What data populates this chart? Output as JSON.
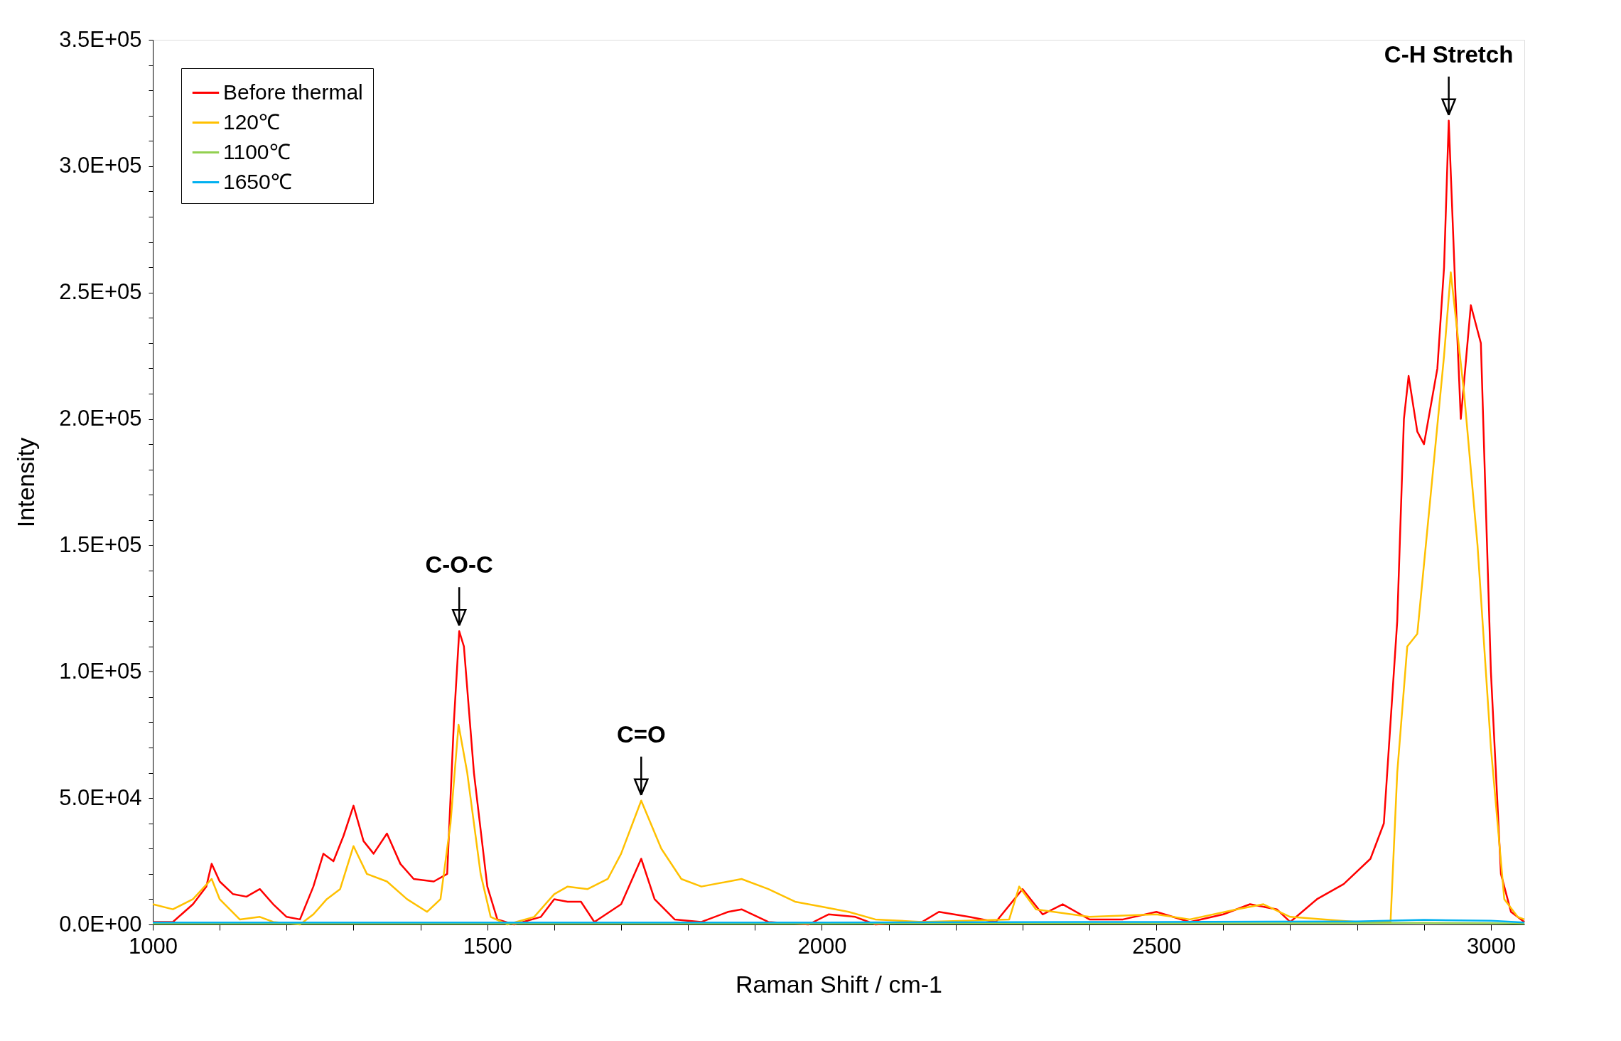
{
  "chart_data": {
    "type": "line",
    "xlabel": "Raman Shift / cm-1",
    "ylabel": "Intensity",
    "xlim": [
      1000,
      3050
    ],
    "ylim": [
      0,
      350000
    ],
    "xticks": [
      1000,
      {
        "value": 1100,
        "label": null
      },
      {
        "value": 1200,
        "label": null
      },
      {
        "value": 1300,
        "label": null
      },
      {
        "value": 1400,
        "label": null
      },
      1500,
      {
        "value": 1600,
        "label": null
      },
      {
        "value": 1700,
        "label": null
      },
      {
        "value": 1800,
        "label": null
      },
      {
        "value": 1900,
        "label": null
      },
      2000,
      {
        "value": 2100,
        "label": null
      },
      {
        "value": 2200,
        "label": null
      },
      {
        "value": 2300,
        "label": null
      },
      {
        "value": 2400,
        "label": null
      },
      2500,
      {
        "value": 2600,
        "label": null
      },
      {
        "value": 2700,
        "label": null
      },
      {
        "value": 2800,
        "label": null
      },
      {
        "value": 2900,
        "label": null
      },
      3000
    ],
    "yticks": [
      {
        "value": 0,
        "label": "0.0E+00"
      },
      {
        "value": 10000,
        "label": null
      },
      {
        "value": 20000,
        "label": null
      },
      {
        "value": 30000,
        "label": null
      },
      {
        "value": 40000,
        "label": null
      },
      {
        "value": 50000,
        "label": "5.0E+04"
      },
      {
        "value": 60000,
        "label": null
      },
      {
        "value": 70000,
        "label": null
      },
      {
        "value": 80000,
        "label": null
      },
      {
        "value": 90000,
        "label": null
      },
      {
        "value": 100000,
        "label": "1.0E+05"
      },
      {
        "value": 110000,
        "label": null
      },
      {
        "value": 120000,
        "label": null
      },
      {
        "value": 130000,
        "label": null
      },
      {
        "value": 140000,
        "label": null
      },
      {
        "value": 150000,
        "label": "1.5E+05"
      },
      {
        "value": 160000,
        "label": null
      },
      {
        "value": 170000,
        "label": null
      },
      {
        "value": 180000,
        "label": null
      },
      {
        "value": 190000,
        "label": null
      },
      {
        "value": 200000,
        "label": "2.0E+05"
      },
      {
        "value": 210000,
        "label": null
      },
      {
        "value": 220000,
        "label": null
      },
      {
        "value": 230000,
        "label": null
      },
      {
        "value": 240000,
        "label": null
      },
      {
        "value": 250000,
        "label": "2.5E+05"
      },
      {
        "value": 260000,
        "label": null
      },
      {
        "value": 270000,
        "label": null
      },
      {
        "value": 280000,
        "label": null
      },
      {
        "value": 290000,
        "label": null
      },
      {
        "value": 300000,
        "label": "3.0E+05"
      },
      {
        "value": 310000,
        "label": null
      },
      {
        "value": 320000,
        "label": null
      },
      {
        "value": 330000,
        "label": null
      },
      {
        "value": 340000,
        "label": null
      },
      {
        "value": 350000,
        "label": "3.5E+05"
      }
    ],
    "grid": false,
    "legend": "top left",
    "marker": "none",
    "line_style": "solid",
    "series": [
      {
        "name": "Before thermal",
        "color": "#ff0000",
        "x": [
          1000,
          1030,
          1060,
          1080,
          1088,
          1100,
          1120,
          1140,
          1160,
          1180,
          1200,
          1220,
          1240,
          1255,
          1270,
          1285,
          1300,
          1315,
          1330,
          1350,
          1370,
          1390,
          1420,
          1440,
          1450,
          1458,
          1465,
          1480,
          1500,
          1515,
          1540,
          1580,
          1600,
          1620,
          1640,
          1660,
          1700,
          1730,
          1750,
          1780,
          1820,
          1860,
          1880,
          1920,
          1980,
          2010,
          2050,
          2080,
          2150,
          2175,
          2220,
          2260,
          2300,
          2330,
          2360,
          2400,
          2450,
          2500,
          2550,
          2600,
          2640,
          2680,
          2700,
          2740,
          2780,
          2820,
          2840,
          2860,
          2870,
          2877,
          2890,
          2900,
          2920,
          2930,
          2937,
          2947,
          2955,
          2970,
          2985,
          3000,
          3015,
          3030,
          3050
        ],
        "values": [
          1000,
          1000,
          8000,
          15000,
          24000,
          17000,
          12000,
          11000,
          14000,
          8000,
          3000,
          2000,
          15000,
          28000,
          25000,
          35000,
          47000,
          33000,
          28000,
          36000,
          24000,
          18000,
          17000,
          20000,
          80000,
          116000,
          110000,
          60000,
          15000,
          2000,
          0,
          3000,
          10000,
          9000,
          9000,
          1000,
          8000,
          26000,
          10000,
          2000,
          1000,
          5000,
          6000,
          1000,
          0,
          4000,
          3000,
          0,
          1000,
          5000,
          3000,
          1000,
          14000,
          4000,
          8000,
          2000,
          2000,
          5000,
          1000,
          4000,
          8000,
          6000,
          1000,
          10000,
          16000,
          26000,
          40000,
          120000,
          200000,
          217000,
          195000,
          190000,
          220000,
          260000,
          318000,
          250000,
          200000,
          245000,
          230000,
          100000,
          20000,
          5000,
          1000
        ]
      },
      {
        "name": "120℃",
        "color": "#ffc000",
        "x": [
          1000,
          1030,
          1060,
          1088,
          1100,
          1130,
          1160,
          1180,
          1220,
          1240,
          1260,
          1280,
          1300,
          1320,
          1350,
          1380,
          1410,
          1430,
          1445,
          1457,
          1470,
          1490,
          1505,
          1530,
          1570,
          1600,
          1620,
          1650,
          1680,
          1700,
          1730,
          1760,
          1790,
          1820,
          1880,
          1920,
          1960,
          2000,
          2040,
          2080,
          2150,
          2280,
          2295,
          2320,
          2400,
          2500,
          2550,
          2620,
          2660,
          2700,
          2800,
          2850,
          2860,
          2875,
          2890,
          2910,
          2930,
          2940,
          2960,
          2980,
          3000,
          3020,
          3040,
          3050
        ],
        "values": [
          8000,
          6000,
          10000,
          18000,
          10000,
          2000,
          3000,
          1000,
          0,
          4000,
          10000,
          14000,
          31000,
          20000,
          17000,
          10000,
          5000,
          10000,
          40000,
          79000,
          60000,
          20000,
          3000,
          0,
          3000,
          12000,
          15000,
          14000,
          18000,
          28000,
          49000,
          30000,
          18000,
          15000,
          18000,
          14000,
          9000,
          7000,
          5000,
          2000,
          1000,
          2000,
          15000,
          6000,
          3000,
          4000,
          2000,
          6000,
          8000,
          3000,
          1000,
          1000,
          60000,
          110000,
          115000,
          170000,
          225000,
          258000,
          210000,
          150000,
          70000,
          10000,
          3000,
          2000
        ]
      },
      {
        "name": "1100℃",
        "color": "#92d050",
        "x": [
          1000,
          1500,
          2000,
          2500,
          2800,
          2900,
          3000,
          3050
        ],
        "values": [
          300,
          300,
          300,
          400,
          500,
          600,
          500,
          300
        ]
      },
      {
        "name": "1650℃",
        "color": "#00b0f0",
        "x": [
          1000,
          1500,
          2000,
          2500,
          2800,
          2900,
          3000,
          3050
        ],
        "values": [
          800,
          800,
          800,
          1000,
          1200,
          1800,
          1500,
          800
        ]
      }
    ],
    "annotations": [
      {
        "text": "C-O-C",
        "x": 1458,
        "y": 116000
      },
      {
        "text": "C=O",
        "x": 1730,
        "y": 49000
      },
      {
        "text": "C-H Stretch",
        "x": 2937,
        "y": 318000
      }
    ]
  }
}
